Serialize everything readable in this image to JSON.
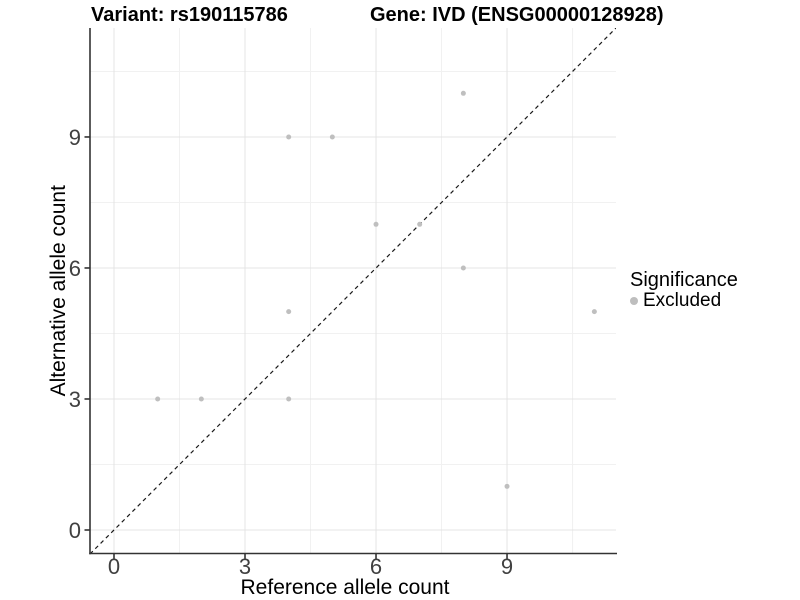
{
  "header": {
    "variant_title": "Variant: rs190115786",
    "gene_title": "Gene: IVD (ENSG00000128928)"
  },
  "legend": {
    "title": "Significance",
    "items": [
      {
        "label": "Excluded",
        "color": "#bebebe"
      }
    ]
  },
  "colors": {
    "point": "#bfbfbf",
    "identity_line": "#1a1a1a",
    "axis_line": "#333333",
    "tick_label": "#404040",
    "axis_title": "#000000",
    "major_grid": "#e4e4e4",
    "minor_grid": "#f1f1f1",
    "background": "#ffffff"
  },
  "chart_data": {
    "type": "scatter",
    "title": "Variant: rs190115786  |  Gene: IVD (ENSG00000128928)",
    "xlabel": "Reference allele count",
    "ylabel": "Alternative allele count",
    "xlim": [
      -0.55,
      11.55
    ],
    "ylim": [
      -0.55,
      11.55
    ],
    "x_ticks": [
      0,
      3,
      6,
      9
    ],
    "y_ticks": [
      0,
      3,
      6,
      9
    ],
    "minor_gridlines": [
      1.5,
      4.5,
      7.5,
      10.5
    ],
    "grid": true,
    "legend_position": "right",
    "identity_line": {
      "style": "dashed",
      "equation": "y = x",
      "color": "#1a1a1a"
    },
    "series": [
      {
        "name": "Excluded",
        "color": "#bfbfbf",
        "points": [
          [
            1,
            3
          ],
          [
            2,
            3
          ],
          [
            4,
            3
          ],
          [
            4,
            5
          ],
          [
            4,
            9
          ],
          [
            5,
            9
          ],
          [
            6,
            7
          ],
          [
            7,
            7
          ],
          [
            8,
            6
          ],
          [
            8,
            10
          ],
          [
            9,
            1
          ],
          [
            11,
            5
          ]
        ]
      }
    ]
  }
}
